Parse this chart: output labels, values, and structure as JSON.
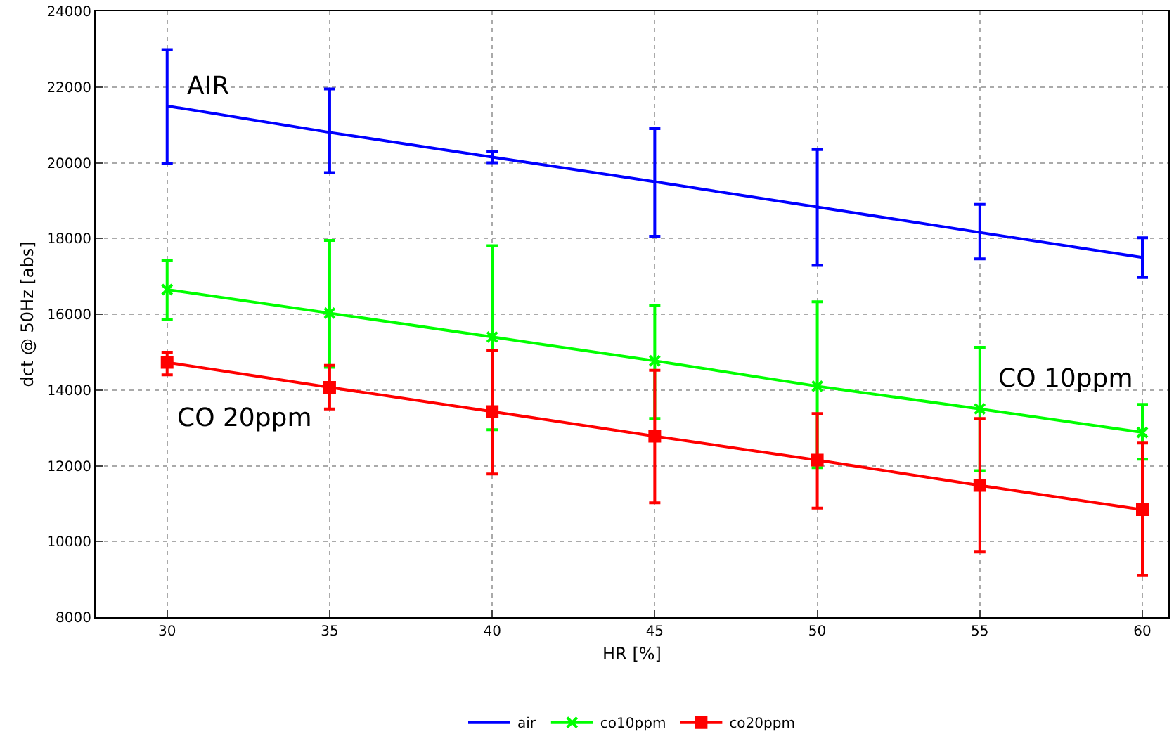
{
  "chart_data": {
    "type": "line",
    "xlabel": "HR [%]",
    "ylabel": "dct @ 50Hz [abs]",
    "x": [
      30,
      35,
      40,
      45,
      50,
      55,
      60
    ],
    "xlim": [
      27.8,
      60.8
    ],
    "xticks": [
      30,
      35,
      40,
      45,
      50,
      55,
      60
    ],
    "ylim": [
      8000,
      24000
    ],
    "yticks": [
      8000,
      10000,
      12000,
      14000,
      16000,
      18000,
      20000,
      22000,
      24000
    ],
    "grid": "both",
    "legend": "bottom",
    "line_style": "solid",
    "series": [
      {
        "name": "air",
        "color": "#0000ff",
        "marker": "none",
        "values": [
          21500,
          20800,
          20150,
          19500,
          18830,
          18160,
          17500
        ],
        "errors": [
          [
            19970,
            22990
          ],
          [
            19740,
            21950
          ],
          [
            20000,
            20300
          ],
          [
            18060,
            20900
          ],
          [
            17290,
            20350
          ],
          [
            17460,
            18900
          ],
          [
            16970,
            18020
          ]
        ]
      },
      {
        "name": "co10ppm",
        "color": "#00ff00",
        "marker": "cross",
        "values": [
          16650,
          16030,
          15400,
          14770,
          14100,
          13500,
          12880
        ],
        "errors": [
          [
            15850,
            17420
          ],
          [
            14600,
            17950
          ],
          [
            12950,
            17810
          ],
          [
            13250,
            16240
          ],
          [
            11950,
            16330
          ],
          [
            11870,
            15130
          ],
          [
            12170,
            13620
          ]
        ]
      },
      {
        "name": "co20ppm",
        "color": "#ff0000",
        "marker": "square",
        "values": [
          14730,
          14070,
          13430,
          12780,
          12150,
          11480,
          10840
        ],
        "errors": [
          [
            14400,
            15000
          ],
          [
            13500,
            14650
          ],
          [
            11780,
            15050
          ],
          [
            11020,
            14520
          ],
          [
            10880,
            13380
          ],
          [
            9720,
            13250
          ],
          [
            9100,
            12600
          ]
        ]
      }
    ],
    "annotations": [
      "AIR",
      "CO 10ppm",
      "CO 20ppm"
    ]
  }
}
